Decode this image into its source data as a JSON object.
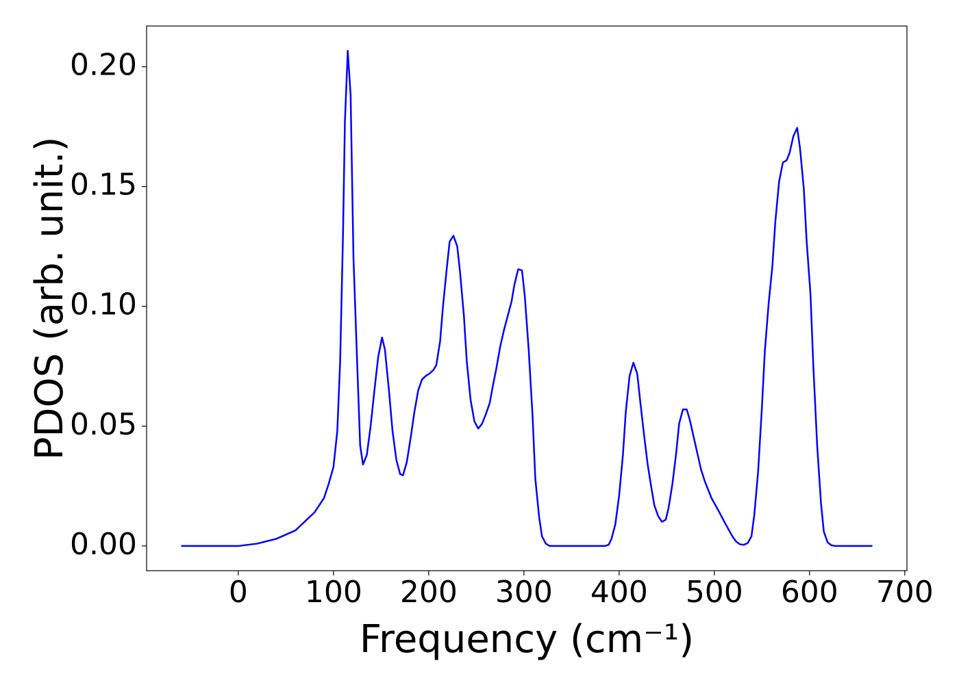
{
  "chart_data": {
    "type": "line",
    "xlabel": "Frequency (cm⁻¹)",
    "ylabel": "PDOS (arb. unit.)",
    "color": "#0000ff",
    "x": [
      -60,
      0,
      20,
      40,
      60,
      80,
      90,
      95,
      100,
      104,
      107,
      110,
      112,
      115,
      118,
      121,
      125,
      128,
      131,
      135,
      139,
      143,
      147,
      151,
      154,
      158,
      162,
      166,
      170,
      173,
      177,
      181,
      185,
      189,
      193,
      197,
      201,
      205,
      208,
      212,
      215,
      219,
      222,
      226,
      230,
      233,
      237,
      240,
      244,
      248,
      252,
      256,
      260,
      264,
      267,
      271,
      275,
      279,
      283,
      287,
      290,
      294,
      298,
      301,
      305,
      309,
      312,
      316,
      319,
      323,
      327,
      385,
      389,
      392,
      396,
      400,
      404,
      407,
      411,
      415,
      419,
      422,
      426,
      430,
      434,
      437,
      441,
      445,
      449,
      452,
      456,
      460,
      463,
      467,
      471,
      474,
      478,
      482,
      486,
      490,
      497,
      504,
      512,
      519,
      523,
      527,
      531,
      535,
      539,
      542,
      546,
      550,
      553,
      557,
      561,
      564,
      568,
      572,
      576,
      579,
      583,
      587,
      590,
      594,
      597,
      601,
      604,
      608,
      612,
      615,
      619,
      623,
      627,
      666
    ],
    "values": [
      0,
      0,
      0.001,
      0.003,
      0.0065,
      0.014,
      0.02,
      0.026,
      0.033,
      0.048,
      0.077,
      0.13,
      0.177,
      0.2067,
      0.188,
      0.12,
      0.075,
      0.042,
      0.034,
      0.038,
      0.05,
      0.065,
      0.079,
      0.087,
      0.082,
      0.066,
      0.048,
      0.036,
      0.03,
      0.0295,
      0.035,
      0.045,
      0.056,
      0.065,
      0.0695,
      0.071,
      0.072,
      0.0735,
      0.0755,
      0.0855,
      0.1,
      0.116,
      0.127,
      0.1295,
      0.125,
      0.114,
      0.096,
      0.077,
      0.061,
      0.052,
      0.049,
      0.051,
      0.055,
      0.0595,
      0.066,
      0.074,
      0.083,
      0.09,
      0.096,
      0.102,
      0.109,
      0.1155,
      0.115,
      0.104,
      0.082,
      0.055,
      0.028,
      0.012,
      0.004,
      0.001,
      0,
      0,
      0.0005,
      0.003,
      0.009,
      0.021,
      0.038,
      0.056,
      0.071,
      0.0765,
      0.072,
      0.061,
      0.047,
      0.034,
      0.024,
      0.017,
      0.0125,
      0.0101,
      0.011,
      0.016,
      0.026,
      0.039,
      0.051,
      0.057,
      0.057,
      0.053,
      0.046,
      0.039,
      0.032,
      0.027,
      0.02,
      0.015,
      0.009,
      0.004,
      0.0018,
      0.0007,
      0.0005,
      0.0012,
      0.004,
      0.013,
      0.031,
      0.058,
      0.081,
      0.101,
      0.117,
      0.135,
      0.152,
      0.16,
      0.161,
      0.164,
      0.171,
      0.1745,
      0.166,
      0.149,
      0.127,
      0.105,
      0.075,
      0.042,
      0.018,
      0.006,
      0.0015,
      0.0003,
      0,
      0
    ],
    "xlim": [
      -96.3,
      702.3
    ],
    "xticks": [
      0,
      100,
      200,
      300,
      400,
      500,
      600,
      700
    ],
    "ylim": [
      -0.0103,
      0.217
    ],
    "yticks": [
      {
        "value": 0,
        "label": "0.00"
      },
      {
        "value": 0.05,
        "label": "0.05"
      },
      {
        "value": 0.1,
        "label": "0.10"
      },
      {
        "value": 0.15,
        "label": "0.15"
      },
      {
        "value": 0.2,
        "label": "0.20"
      }
    ]
  }
}
